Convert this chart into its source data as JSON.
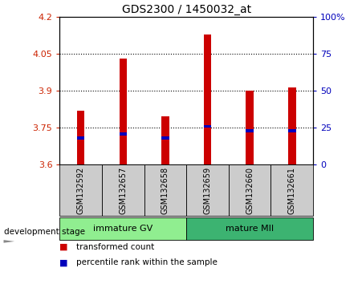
{
  "title": "GDS2300 / 1450032_at",
  "samples": [
    "GSM132592",
    "GSM132657",
    "GSM132658",
    "GSM132659",
    "GSM132660",
    "GSM132661"
  ],
  "transformed_counts": [
    3.82,
    4.03,
    3.795,
    4.13,
    3.9,
    3.915
  ],
  "percentile_ranks": [
    18,
    21,
    18,
    26,
    23,
    23
  ],
  "bar_bottom": 3.6,
  "ylim": [
    3.6,
    4.2
  ],
  "yticks": [
    3.6,
    3.75,
    3.9,
    4.05,
    4.2
  ],
  "right_yticks": [
    0,
    25,
    50,
    75,
    100
  ],
  "right_ylim": [
    0,
    100
  ],
  "groups": [
    {
      "label": "immature GV",
      "samples": [
        0,
        1,
        2
      ],
      "color": "#90EE90"
    },
    {
      "label": "mature MII",
      "samples": [
        3,
        4,
        5
      ],
      "color": "#3CB371"
    }
  ],
  "bar_color": "#cc0000",
  "percentile_color": "#0000bb",
  "bg_color": "#cccccc",
  "plot_bg": "#ffffff",
  "left_label_color": "#cc2200",
  "right_label_color": "#0000bb",
  "bar_width": 0.18,
  "legend_items": [
    {
      "label": "transformed count",
      "color": "#cc0000"
    },
    {
      "label": "percentile rank within the sample",
      "color": "#0000bb"
    }
  ]
}
